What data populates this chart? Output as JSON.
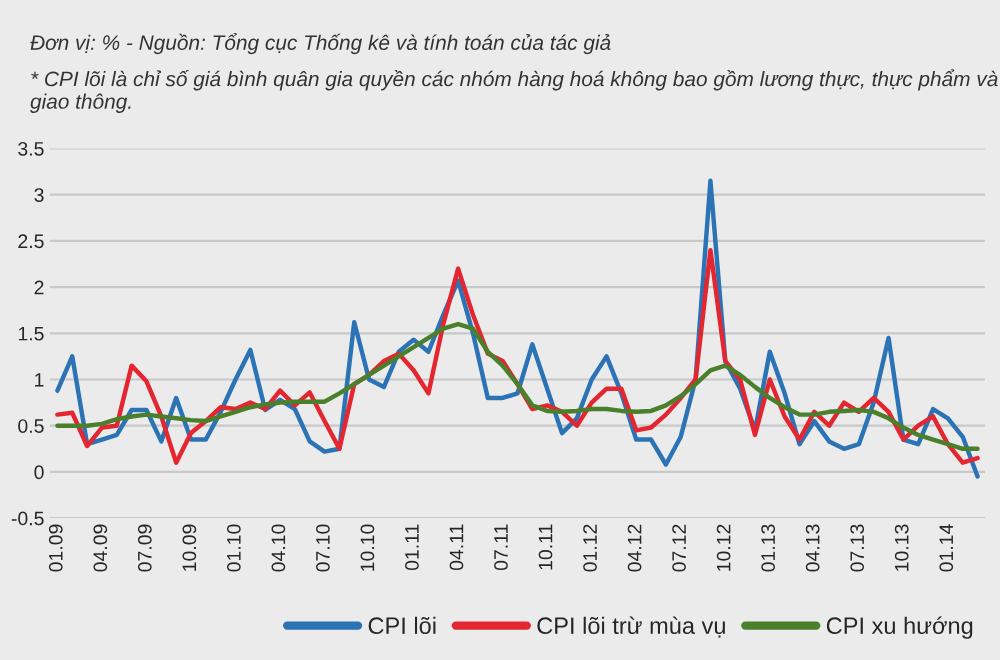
{
  "chart_data": {
    "type": "line",
    "annotations": [
      "Đơn vị: % - Nguồn: Tổng cục Thống kê và tính toán của tác giả",
      "* CPI lõi là chỉ số giá bình quân gia quyền các nhóm hàng hoá không bao gồm lương thực, thực phẩm và giao thông."
    ],
    "categories": [
      "01.09",
      null,
      null,
      "04.09",
      null,
      null,
      "07.09",
      null,
      null,
      "10.09",
      null,
      null,
      "01.10",
      null,
      null,
      "04.10",
      null,
      null,
      "07.10",
      null,
      null,
      "10.10",
      null,
      null,
      "01.11",
      null,
      null,
      "04.11",
      null,
      null,
      "07.11",
      null,
      null,
      "10.11",
      null,
      null,
      "01.12",
      null,
      null,
      "04.12",
      null,
      null,
      "07.12",
      null,
      null,
      "10.12",
      null,
      null,
      "01.13",
      null,
      null,
      "04.13",
      null,
      null,
      "07.13",
      null,
      null,
      "10.13",
      null,
      null,
      "01.14",
      null,
      null
    ],
    "series": [
      {
        "name": "CPI lõi",
        "color": "#2b73b5",
        "values": [
          0.88,
          1.25,
          0.3,
          0.35,
          0.4,
          0.67,
          0.67,
          0.33,
          0.8,
          0.35,
          0.35,
          0.65,
          1.0,
          1.32,
          0.67,
          0.78,
          0.68,
          0.33,
          0.22,
          0.25,
          1.62,
          1.0,
          0.92,
          1.3,
          1.43,
          1.3,
          1.7,
          2.07,
          1.5,
          0.8,
          0.8,
          0.85,
          1.38,
          0.9,
          0.42,
          0.58,
          1.0,
          1.25,
          0.85,
          0.35,
          0.35,
          0.08,
          0.38,
          1.0,
          3.15,
          1.2,
          0.9,
          0.45,
          1.3,
          0.85,
          0.3,
          0.55,
          0.33,
          0.25,
          0.3,
          0.75,
          1.45,
          0.35,
          0.3,
          0.68,
          0.58,
          0.38,
          -0.05
        ]
      },
      {
        "name": "CPI lõi trừ mùa vụ",
        "color": "#e3262f",
        "values": [
          0.62,
          0.64,
          0.28,
          0.48,
          0.5,
          1.15,
          0.98,
          0.6,
          0.1,
          0.42,
          0.55,
          0.7,
          0.68,
          0.75,
          0.68,
          0.88,
          0.72,
          0.86,
          0.55,
          0.25,
          0.95,
          1.05,
          1.2,
          1.28,
          1.1,
          0.85,
          1.6,
          2.2,
          1.7,
          1.28,
          1.2,
          0.95,
          0.68,
          0.72,
          0.65,
          0.5,
          0.75,
          0.9,
          0.9,
          0.45,
          0.48,
          0.62,
          0.8,
          1.0,
          2.4,
          1.2,
          1.0,
          0.4,
          1.0,
          0.6,
          0.35,
          0.65,
          0.5,
          0.75,
          0.65,
          0.8,
          0.65,
          0.35,
          0.5,
          0.6,
          0.3,
          0.1,
          0.15
        ]
      },
      {
        "name": "CPI xu hướng",
        "color": "#4a7f2b",
        "values": [
          0.5,
          0.5,
          0.5,
          0.52,
          0.57,
          0.6,
          0.62,
          0.6,
          0.58,
          0.56,
          0.55,
          0.6,
          0.65,
          0.7,
          0.73,
          0.75,
          0.76,
          0.76,
          0.76,
          0.85,
          0.95,
          1.05,
          1.15,
          1.25,
          1.35,
          1.45,
          1.55,
          1.6,
          1.55,
          1.3,
          1.15,
          0.95,
          0.72,
          0.66,
          0.65,
          0.66,
          0.68,
          0.68,
          0.66,
          0.65,
          0.66,
          0.72,
          0.82,
          0.95,
          1.1,
          1.15,
          1.05,
          0.92,
          0.8,
          0.7,
          0.62,
          0.62,
          0.65,
          0.66,
          0.67,
          0.65,
          0.58,
          0.48,
          0.4,
          0.35,
          0.3,
          0.25,
          0.25
        ]
      }
    ],
    "ylim": [
      -0.5,
      3.5
    ],
    "yticks": [
      {
        "value": 3.5,
        "label": "3.5"
      },
      {
        "value": 3,
        "label": "3"
      },
      {
        "value": 2.5,
        "label": "2.5"
      },
      {
        "value": 2,
        "label": "2"
      },
      {
        "value": 1.5,
        "label": "1.5"
      },
      {
        "value": 1,
        "label": "1"
      },
      {
        "value": 0.5,
        "label": "0.5"
      },
      {
        "value": 0,
        "label": "0"
      },
      {
        "value": -0.5,
        "label": "-0.5"
      }
    ],
    "grid": "y",
    "legend": "bottom right"
  }
}
